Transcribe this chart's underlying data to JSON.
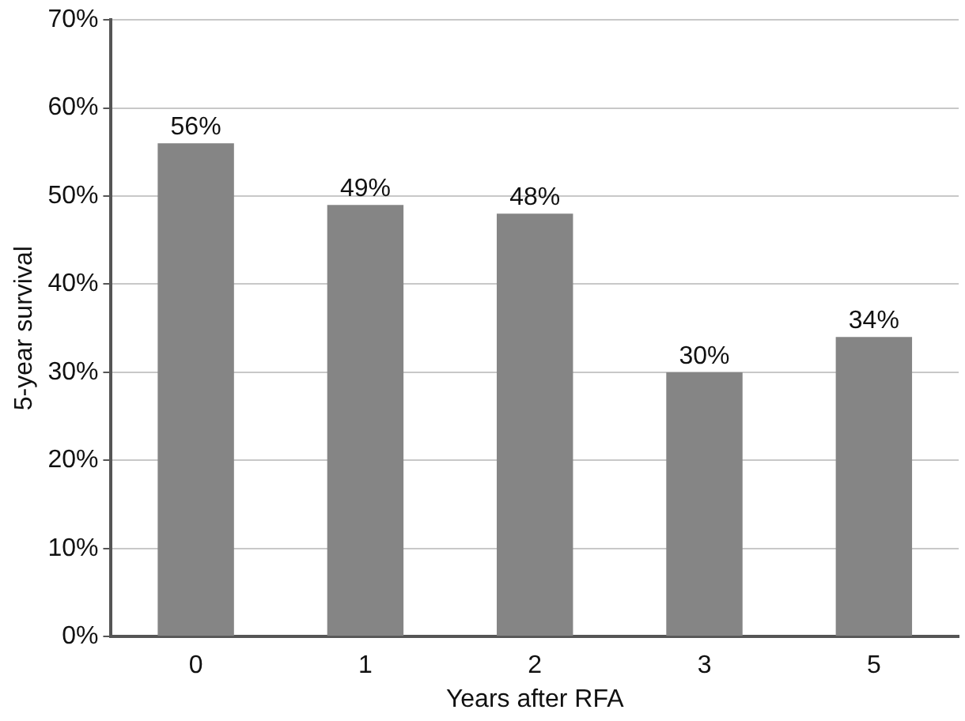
{
  "chart_data": {
    "type": "bar",
    "xlabel": "Years after RFA",
    "ylabel": "5-year survival",
    "categories": [
      "0",
      "1",
      "2",
      "3",
      "5"
    ],
    "values": [
      56,
      49,
      48,
      30,
      34
    ],
    "value_labels": [
      "56%",
      "49%",
      "48%",
      "30%",
      "34%"
    ],
    "color": "#858585",
    "ylim": [
      0,
      70
    ],
    "yticks": [
      {
        "value": 0,
        "label": "0%"
      },
      {
        "value": 10,
        "label": "10%"
      },
      {
        "value": 20,
        "label": "20%"
      },
      {
        "value": 30,
        "label": "30%"
      },
      {
        "value": 40,
        "label": "40%"
      },
      {
        "value": 50,
        "label": "50%"
      },
      {
        "value": 60,
        "label": "60%"
      },
      {
        "value": 70,
        "label": "70%"
      }
    ],
    "grid": "y",
    "legend": false
  }
}
